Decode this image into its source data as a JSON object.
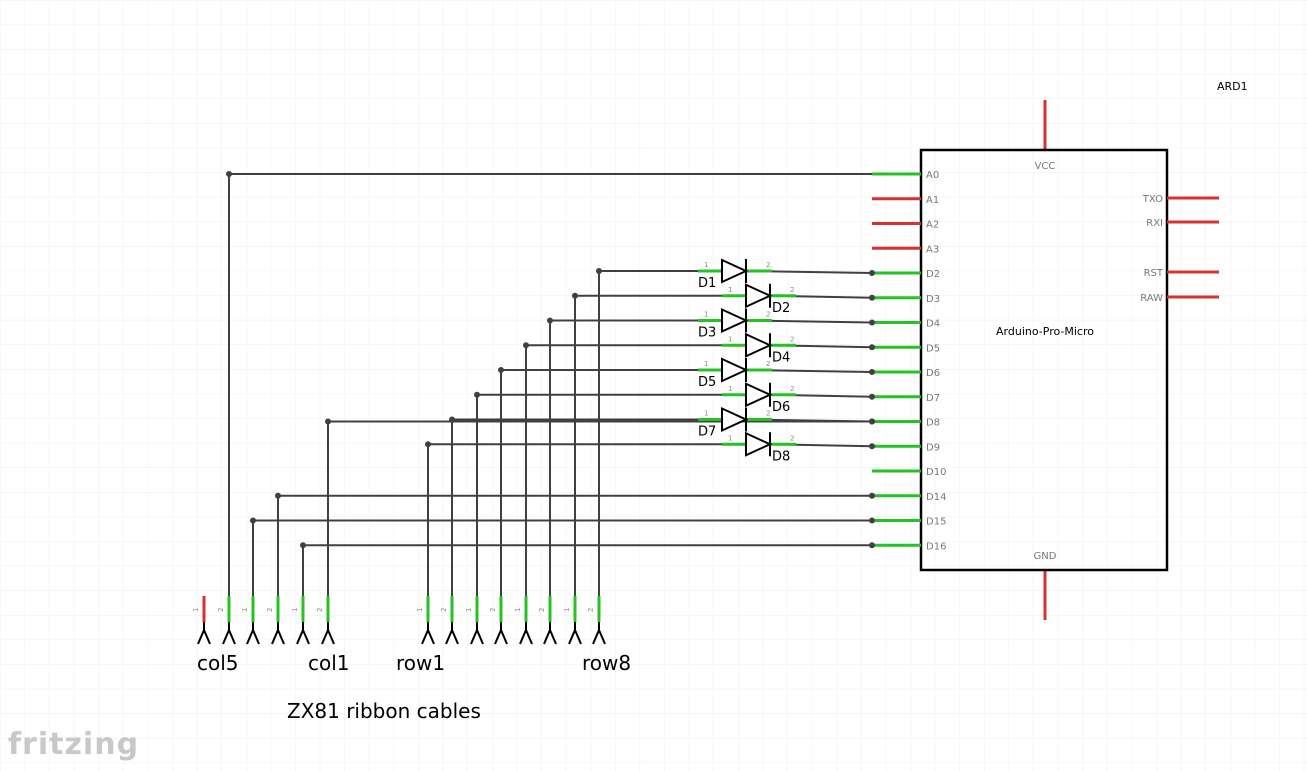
{
  "ard": {
    "ref": "ARD1",
    "name": "Arduino-Pro-Micro",
    "vcc": "VCC",
    "gnd": "GND",
    "left_pins": [
      "A0",
      "A1",
      "A2",
      "A3",
      "D2",
      "D3",
      "D4",
      "D5",
      "D6",
      "D7",
      "D8",
      "D9",
      "D10",
      "D14",
      "D15",
      "D16"
    ],
    "right_pins": [
      "TXO",
      "RXI",
      "RST",
      "RAW"
    ]
  },
  "diodes": [
    "D1",
    "D2",
    "D3",
    "D4",
    "D5",
    "D6",
    "D7",
    "D8"
  ],
  "pin_num_1": "1",
  "pin_num_2": "2",
  "connector_labels": {
    "col5": "col5",
    "col1": "col1",
    "row1": "row1",
    "row8": "row8"
  },
  "caption": "ZX81 ribbon cables",
  "logo": "fritzing",
  "colors": {
    "wire": "#404040",
    "connected_pin": "#22c322",
    "unconnected_pin": "#d93030",
    "part_outline": "#000000",
    "grid": "#ececec"
  }
}
